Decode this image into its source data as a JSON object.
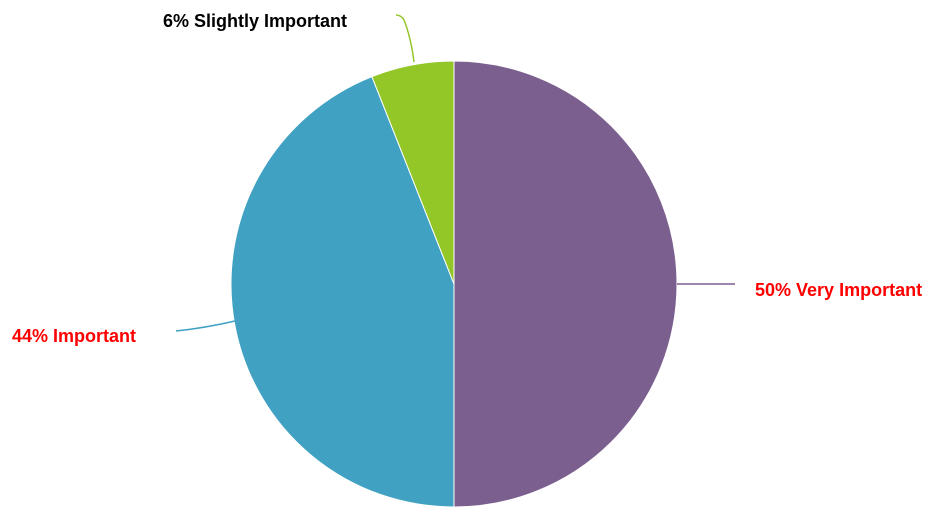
{
  "chart_data": {
    "type": "pie",
    "title": "",
    "slices": [
      {
        "label": "Very Important",
        "value": 50,
        "display": "50% Very Important",
        "color": "#7b5f8f",
        "label_color": "#ff0000"
      },
      {
        "label": "Important",
        "value": 44,
        "display": "44% Important",
        "color": "#40a1c2",
        "label_color": "#ff0000"
      },
      {
        "label": "Slightly Important",
        "value": 6,
        "display": "6% Slightly Important",
        "color": "#93c627",
        "label_color": "#000000"
      }
    ],
    "start": "12 o'clock",
    "direction": "clockwise",
    "legend": "none"
  }
}
